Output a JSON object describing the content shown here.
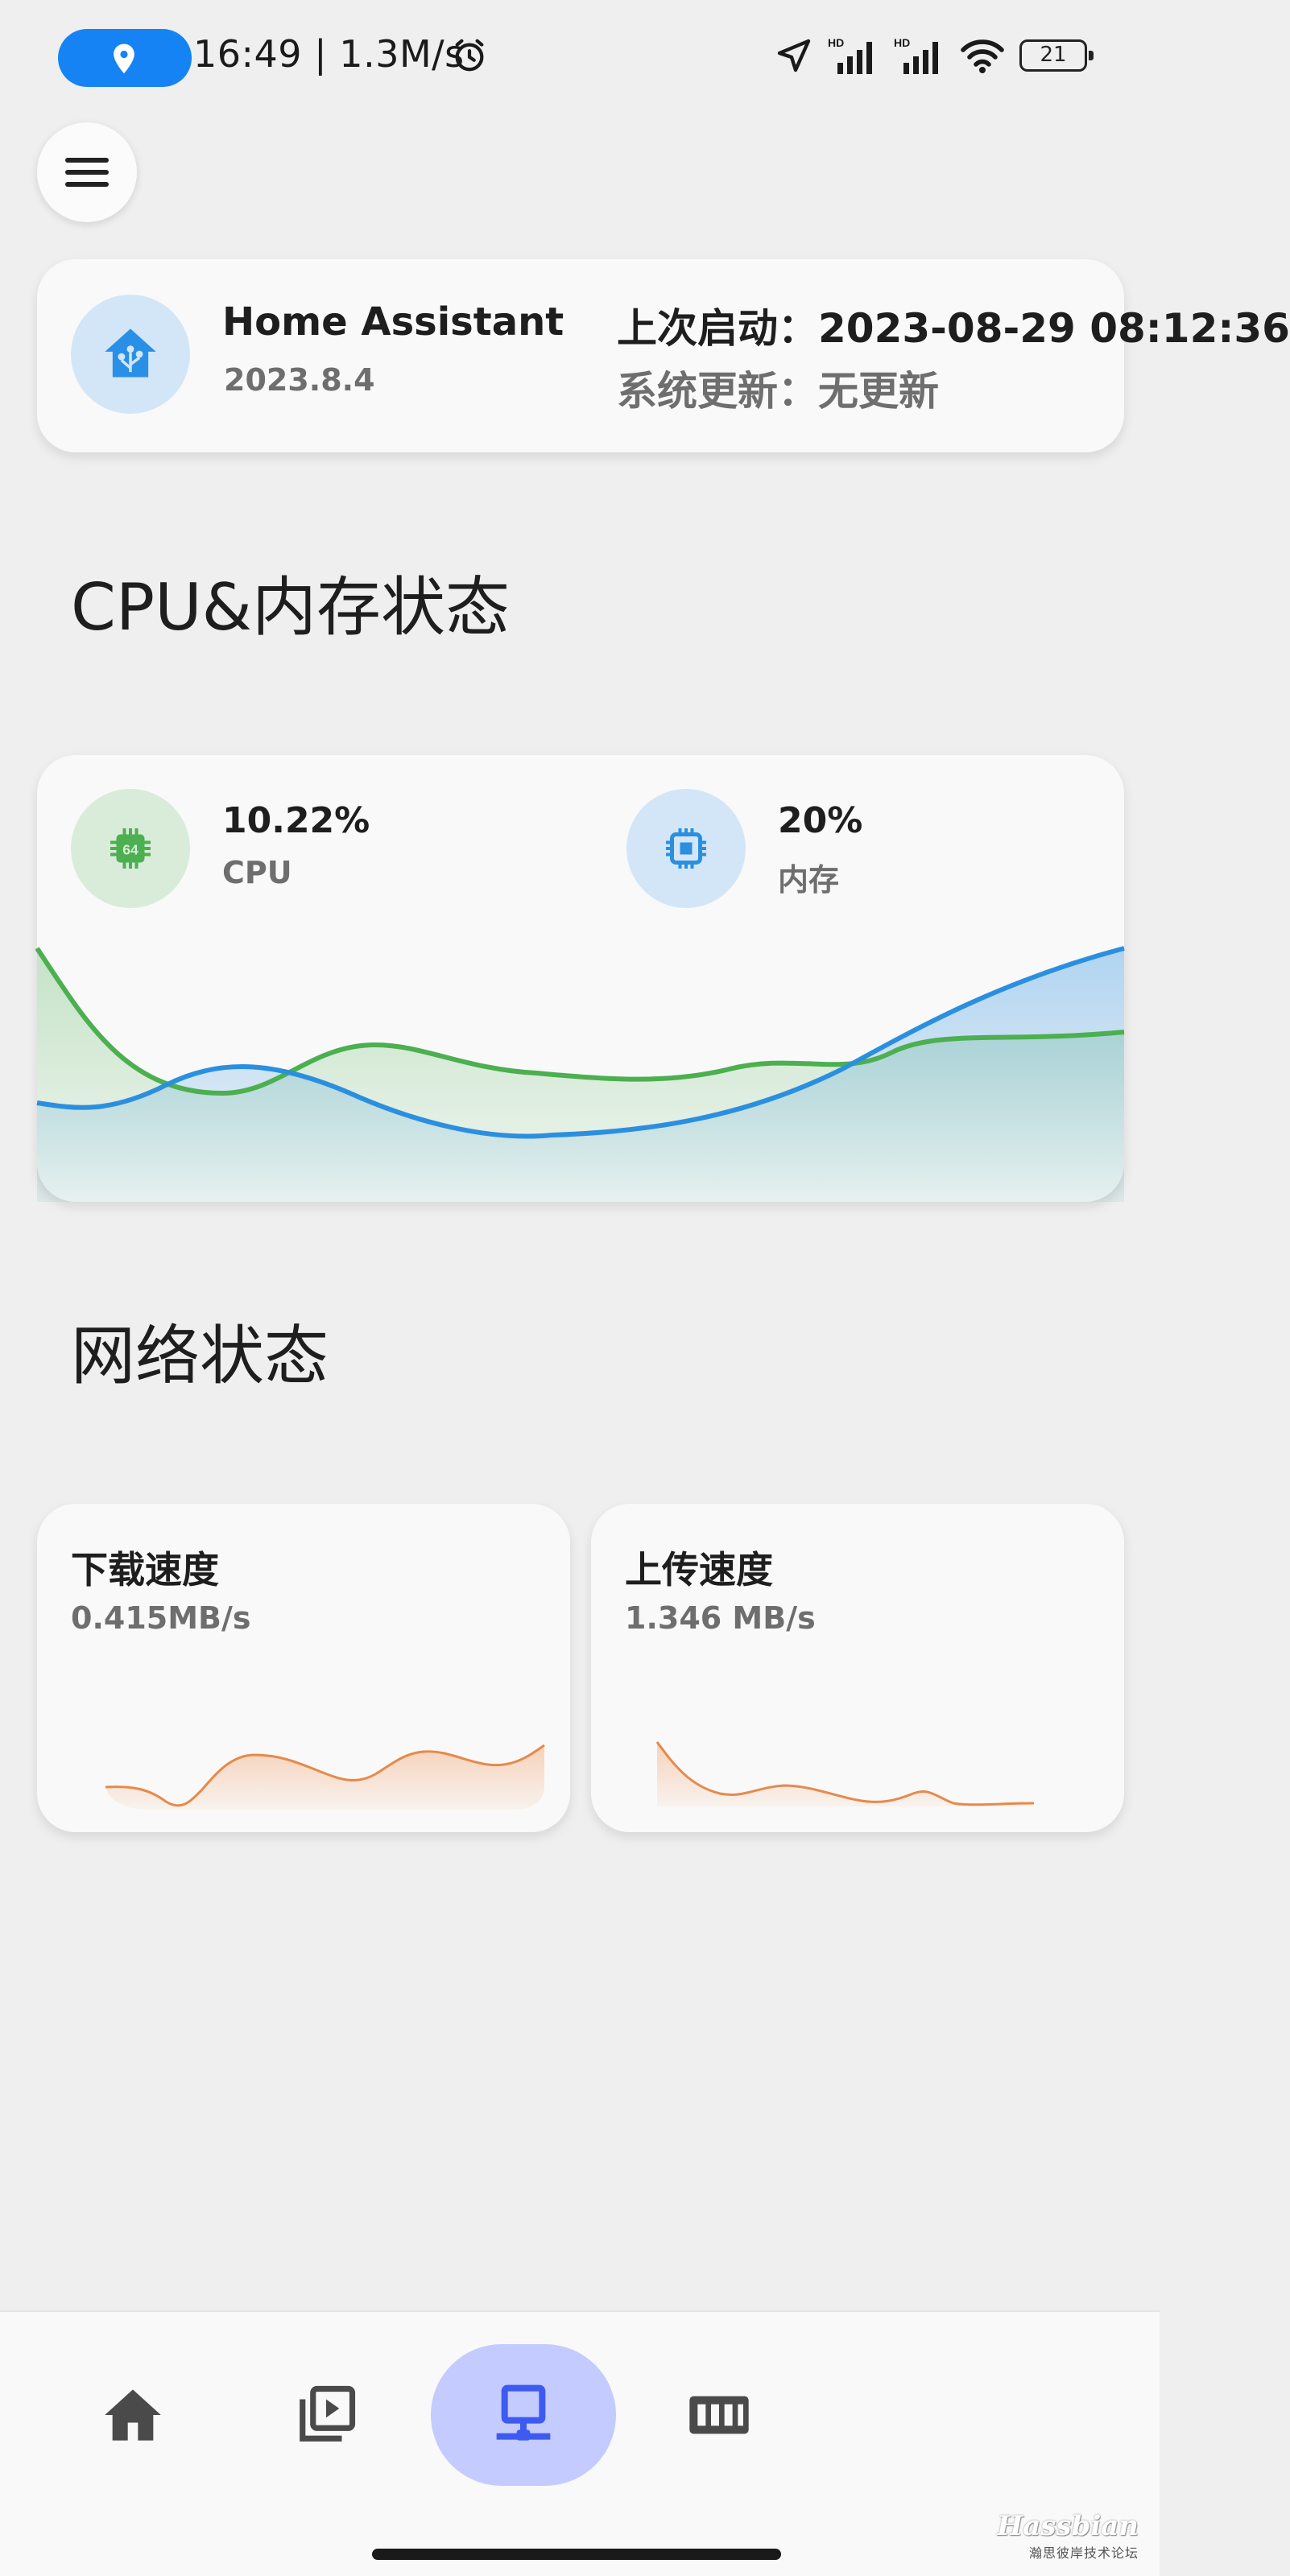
{
  "status_bar": {
    "time_speed": "16:49 | 1.3M/s",
    "battery": "21",
    "icons": [
      "location-pin-icon",
      "alarm-icon",
      "navigation-arrow-icon",
      "signal-hd-icon",
      "signal-hd-icon",
      "wifi-icon",
      "battery-icon"
    ]
  },
  "menu": {
    "icon": "hamburger-menu-icon"
  },
  "info": {
    "icon": "home-assistant-icon",
    "title": "Home Assistant",
    "version": "2023.8.4",
    "last_boot": "上次启动：2023-08-29 08:12:36",
    "system_update": "系统更新：无更新"
  },
  "sections": {
    "cpu_memory": "CPU&内存状态",
    "network": "网络状态"
  },
  "cpu": {
    "value": "10.22%",
    "label": "CPU",
    "icon": "chip-64-icon",
    "color": "#4caf50"
  },
  "memory": {
    "value": "20%",
    "label": "内存",
    "icon": "memory-chip-icon",
    "color": "#2b8fe0"
  },
  "network": {
    "download": {
      "title": "下载速度",
      "value": "0.415MB/s"
    },
    "upload": {
      "title": "上传速度",
      "value": "1.346 MB/s"
    },
    "line_color": "#e8894a"
  },
  "bottom_nav": {
    "items": [
      {
        "icon": "home-icon"
      },
      {
        "icon": "media-library-icon"
      },
      {
        "icon": "network-computer-icon",
        "active": true
      },
      {
        "icon": "storage-icon"
      }
    ]
  },
  "watermark": {
    "logo": "Hassbian",
    "sub": "瀚思彼岸技术论坛"
  }
}
